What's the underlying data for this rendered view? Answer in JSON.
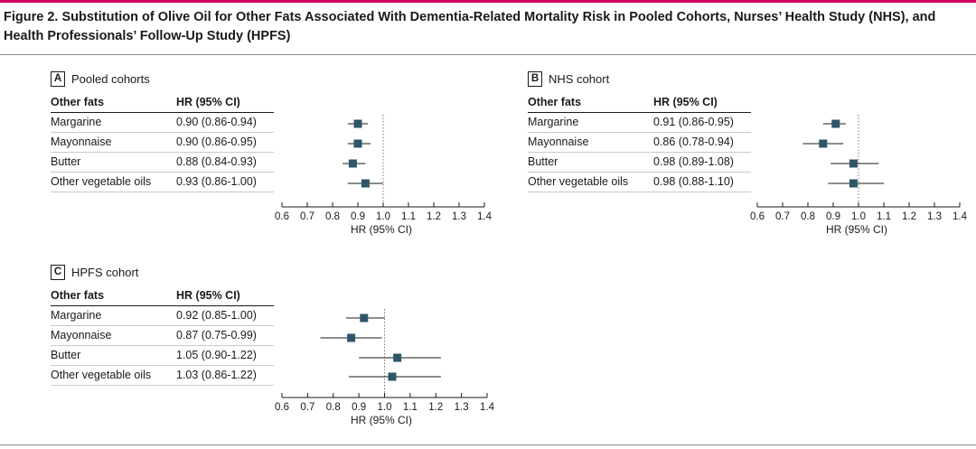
{
  "figure_title": "Figure 2. Substitution of Olive Oil for Other Fats Associated With Dementia-Related Mortality Risk in Pooled Cohorts, Nurses’ Health Study (NHS), and Health Professionals’ Follow-Up Study (HPFS)",
  "colors": {
    "accent_rule": "#d1005d",
    "marker": "#2e5668",
    "line": "#1a1a1a"
  },
  "panels": [
    {
      "letter": "A",
      "name": "Pooled cohorts",
      "col1_header": "Other fats",
      "col2_header": "HR (95% CI)",
      "axis_title": "HR (95% CI)"
    },
    {
      "letter": "B",
      "name": "NHS cohort",
      "col1_header": "Other fats",
      "col2_header": "HR (95% CI)",
      "axis_title": "HR (95% CI)"
    },
    {
      "letter": "C",
      "name": "HPFS cohort",
      "col1_header": "Other fats",
      "col2_header": "HR (95% CI)",
      "axis_title": "HR (95% CI)"
    }
  ],
  "chart_data": [
    {
      "type": "scatter",
      "title": "Pooled cohorts",
      "xlabel": "HR (95% CI)",
      "xlim": [
        0.6,
        1.4
      ],
      "xticks": [
        "0.6",
        "0.7",
        "0.8",
        "0.9",
        "1.0",
        "1.1",
        "1.2",
        "1.3",
        "1.4"
      ],
      "reference_line": 1.0,
      "rows": [
        {
          "label": "Margarine",
          "ci_text": "0.90 (0.86-0.94)",
          "hr": 0.9,
          "lo": 0.86,
          "hi": 0.94
        },
        {
          "label": "Mayonnaise",
          "ci_text": "0.90 (0.86-0.95)",
          "hr": 0.9,
          "lo": 0.86,
          "hi": 0.95
        },
        {
          "label": "Butter",
          "ci_text": "0.88 (0.84-0.93)",
          "hr": 0.88,
          "lo": 0.84,
          "hi": 0.93
        },
        {
          "label": "Other vegetable oils",
          "ci_text": "0.93 (0.86-1.00)",
          "hr": 0.93,
          "lo": 0.86,
          "hi": 1.0
        }
      ]
    },
    {
      "type": "scatter",
      "title": "NHS cohort",
      "xlabel": "HR (95% CI)",
      "xlim": [
        0.6,
        1.4
      ],
      "xticks": [
        "0.6",
        "0.7",
        "0.8",
        "0.9",
        "1.0",
        "1.1",
        "1.2",
        "1.3",
        "1.4"
      ],
      "reference_line": 1.0,
      "rows": [
        {
          "label": "Margarine",
          "ci_text": "0.91 (0.86-0.95)",
          "hr": 0.91,
          "lo": 0.86,
          "hi": 0.95
        },
        {
          "label": "Mayonnaise",
          "ci_text": "0.86 (0.78-0.94)",
          "hr": 0.86,
          "lo": 0.78,
          "hi": 0.94
        },
        {
          "label": "Butter",
          "ci_text": "0.98 (0.89-1.08)",
          "hr": 0.98,
          "lo": 0.89,
          "hi": 1.08
        },
        {
          "label": "Other vegetable oils",
          "ci_text": "0.98 (0.88-1.10)",
          "hr": 0.98,
          "lo": 0.88,
          "hi": 1.1
        }
      ]
    },
    {
      "type": "scatter",
      "title": "HPFS cohort",
      "xlabel": "HR (95% CI)",
      "xlim": [
        0.6,
        1.4
      ],
      "xticks": [
        "0.6",
        "0.7",
        "0.8",
        "0.9",
        "1.0",
        "1.1",
        "1.2",
        "1.3",
        "1.4"
      ],
      "reference_line": 1.0,
      "rows": [
        {
          "label": "Margarine",
          "ci_text": "0.92 (0.85-1.00)",
          "hr": 0.92,
          "lo": 0.85,
          "hi": 1.0
        },
        {
          "label": "Mayonnaise",
          "ci_text": "0.87 (0.75-0.99)",
          "hr": 0.87,
          "lo": 0.75,
          "hi": 0.99
        },
        {
          "label": "Butter",
          "ci_text": "1.05 (0.90-1.22)",
          "hr": 1.05,
          "lo": 0.9,
          "hi": 1.22
        },
        {
          "label": "Other vegetable oils",
          "ci_text": "1.03 (0.86-1.22)",
          "hr": 1.03,
          "lo": 0.86,
          "hi": 1.22
        }
      ]
    }
  ]
}
